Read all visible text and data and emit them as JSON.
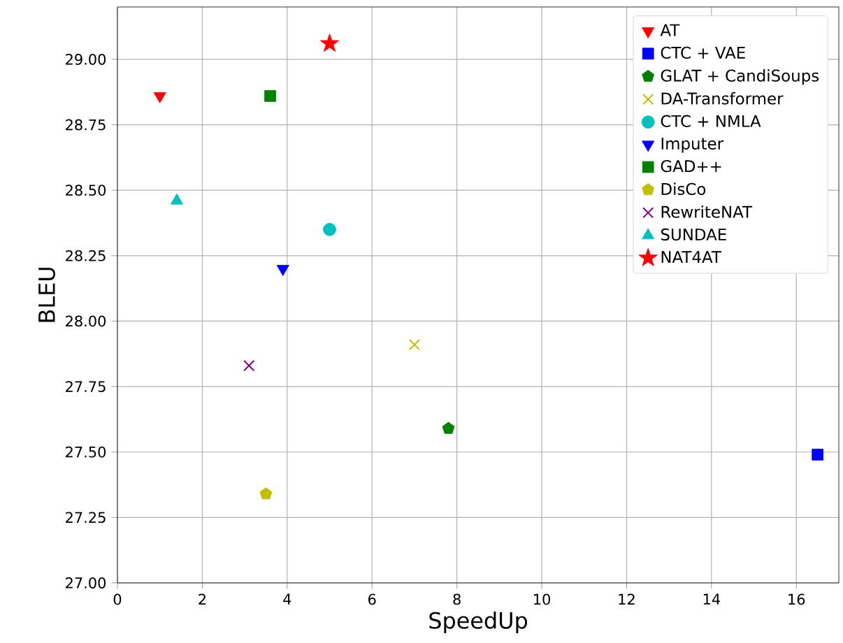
{
  "chart_data": {
    "type": "scatter",
    "xlabel": "SpeedUp",
    "ylabel": "BLEU",
    "xlim": [
      0,
      17
    ],
    "ylim": [
      27.0,
      29.2
    ],
    "xticks": [
      0,
      2,
      4,
      6,
      8,
      10,
      12,
      14,
      16
    ],
    "yticks": [
      {
        "value": 27.0,
        "label": "27.00"
      },
      {
        "value": 27.25,
        "label": "27.25"
      },
      {
        "value": 27.5,
        "label": "27.50"
      },
      {
        "value": 27.75,
        "label": "27.75"
      },
      {
        "value": 28.0,
        "label": "28.00"
      },
      {
        "value": 28.25,
        "label": "28.25"
      },
      {
        "value": 28.5,
        "label": "28.50"
      },
      {
        "value": 28.75,
        "label": "28.75"
      },
      {
        "value": 29.0,
        "label": "29.00"
      }
    ],
    "grid": true,
    "legend": "top right",
    "series": [
      {
        "name": "AT",
        "color": "#ff0000",
        "marker": "triangle_down",
        "x": [
          1.0
        ],
        "values": [
          28.86
        ]
      },
      {
        "name": "CTC + VAE",
        "color": "#0000ff",
        "marker": "square",
        "x": [
          16.5
        ],
        "values": [
          27.49
        ]
      },
      {
        "name": "GLAT + CandiSoups",
        "color": "#008000",
        "x": [
          7.8
        ],
        "values": [
          27.59
        ]
      },
      {
        "name": "DA-Transformer",
        "color": "#bfbf00",
        "marker": "x",
        "x": [
          7.0
        ],
        "values": [
          27.91
        ]
      },
      {
        "name": "CTC + NMLA",
        "color": "#00bfbf",
        "marker": "circle",
        "x": [
          5.0
        ],
        "values": [
          28.35
        ]
      },
      {
        "name": "Imputer",
        "color": "#0000ff",
        "marker": "triangle_down",
        "x": [
          3.9
        ],
        "values": [
          28.2
        ]
      },
      {
        "name": "GAD++",
        "color": "#008000",
        "marker": "square",
        "x": [
          3.6
        ],
        "values": [
          28.86
        ]
      },
      {
        "name": "DisCo",
        "color": "#bfbf00",
        "x": [
          3.5
        ],
        "values": [
          27.34
        ]
      },
      {
        "name": "RewriteNAT",
        "color": "#800080",
        "marker": "x",
        "x": [
          3.1
        ],
        "values": [
          27.83
        ]
      },
      {
        "name": "SUNDAE",
        "color": "#00bfbf",
        "marker": "triangle",
        "x": [
          1.4
        ],
        "values": [
          28.46
        ]
      },
      {
        "name": "NAT4AT",
        "color": "#ff0000",
        "marker": "star",
        "x": [
          5.0
        ],
        "values": [
          29.06
        ]
      }
    ]
  }
}
